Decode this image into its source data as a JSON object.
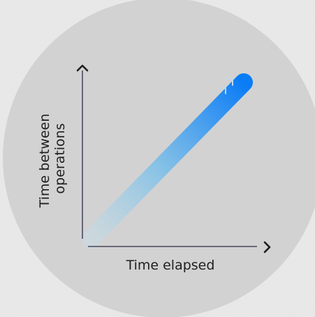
{
  "chart_data": {
    "type": "line",
    "title": "",
    "xlabel": "Time elapsed",
    "ylabel_lines": [
      "Time between",
      "operations"
    ],
    "x": [
      0,
      1
    ],
    "series": [
      {
        "values": [
          0,
          1
        ]
      }
    ],
    "xlim": [
      0,
      1
    ],
    "ylim": [
      0,
      1
    ],
    "grid": false,
    "legend": "none"
  },
  "colors": {
    "background": "#e9e9e9",
    "circle": "#d2d2d2",
    "axis": "#2b2b4a",
    "line_start": "#c8dce4",
    "line_end": "#0a7cf6"
  },
  "icons": {
    "y_axis_end": "chevron-up-icon",
    "x_axis_end": "chevron-right-icon",
    "line_end": "double-chevron-up-right-icon"
  }
}
